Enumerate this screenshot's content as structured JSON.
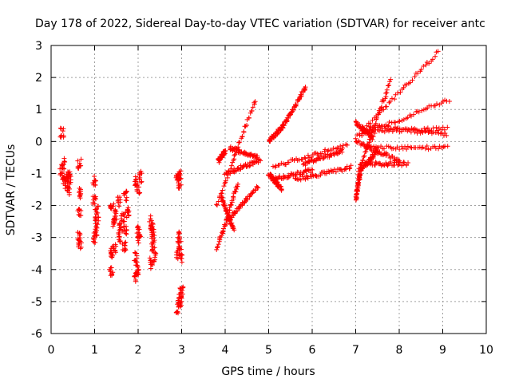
{
  "chart_data": {
    "type": "scatter",
    "title": "Day 178 of 2022, Sidereal Day-to-day VTEC variation (SDTVAR) for receiver antc",
    "xlabel": "GPS time / hours",
    "ylabel": "SDTVAR / TECUs",
    "xlim": [
      0,
      10
    ],
    "ylim": [
      -6,
      3
    ],
    "x_ticks": [
      "0",
      "1",
      "2",
      "3",
      "4",
      "5",
      "6",
      "7",
      "8",
      "9",
      "10"
    ],
    "y_ticks": [
      "-6",
      "-5",
      "-4",
      "-3",
      "-2",
      "-1",
      "0",
      "1",
      "2",
      "3"
    ],
    "grid": true,
    "marker": "+",
    "marker_color": "#ff0000",
    "clusters": [
      {
        "x": 0.25,
        "y": 0.3
      },
      {
        "x": 0.22,
        "y": -0.9
      },
      {
        "x": 0.3,
        "y": -1.2
      },
      {
        "x": 0.38,
        "y": -1.0
      },
      {
        "x": 0.4,
        "y": -1.5
      },
      {
        "x": 0.28,
        "y": -0.7
      },
      {
        "x": 0.35,
        "y": -1.3
      },
      {
        "x": 0.42,
        "y": -1.1
      },
      {
        "x": 0.65,
        "y": -0.7
      },
      {
        "x": 0.65,
        "y": -1.6
      },
      {
        "x": 0.65,
        "y": -2.2
      },
      {
        "x": 0.65,
        "y": -3.0
      },
      {
        "x": 0.66,
        "y": -3.2
      },
      {
        "x": 1.0,
        "y": -1.2
      },
      {
        "x": 1.0,
        "y": -1.8
      },
      {
        "x": 1.05,
        "y": -2.2
      },
      {
        "x": 1.02,
        "y": -2.8
      },
      {
        "x": 1.0,
        "y": -3.0
      },
      {
        "x": 1.05,
        "y": -2.5
      },
      {
        "x": 1.4,
        "y": -3.5
      },
      {
        "x": 1.45,
        "y": -3.3
      },
      {
        "x": 1.42,
        "y": -2.5
      },
      {
        "x": 1.4,
        "y": -2.0
      },
      {
        "x": 1.5,
        "y": -2.3
      },
      {
        "x": 1.55,
        "y": -1.9
      },
      {
        "x": 1.6,
        "y": -2.7
      },
      {
        "x": 1.65,
        "y": -2.4
      },
      {
        "x": 1.7,
        "y": -2.8
      },
      {
        "x": 1.68,
        "y": -3.3
      },
      {
        "x": 1.7,
        "y": -1.7
      },
      {
        "x": 1.38,
        "y": -4.1
      },
      {
        "x": 1.75,
        "y": -2.2
      },
      {
        "x": 1.58,
        "y": -3.0
      },
      {
        "x": 1.95,
        "y": -1.2
      },
      {
        "x": 2.0,
        "y": -1.5
      },
      {
        "x": 1.95,
        "y": -3.6
      },
      {
        "x": 1.98,
        "y": -4.0
      },
      {
        "x": 1.95,
        "y": -4.2
      },
      {
        "x": 2.0,
        "y": -2.8
      },
      {
        "x": 2.02,
        "y": -3.0
      },
      {
        "x": 2.05,
        "y": -1.1
      },
      {
        "x": 2.3,
        "y": -2.5
      },
      {
        "x": 2.32,
        "y": -2.7
      },
      {
        "x": 2.35,
        "y": -3.3
      },
      {
        "x": 2.38,
        "y": -3.6
      },
      {
        "x": 2.3,
        "y": -3.8
      },
      {
        "x": 2.35,
        "y": -3.0
      },
      {
        "x": 2.9,
        "y": -1.1
      },
      {
        "x": 2.95,
        "y": -1.3
      },
      {
        "x": 2.95,
        "y": -1.0
      },
      {
        "x": 2.92,
        "y": -3.0
      },
      {
        "x": 2.95,
        "y": -3.3
      },
      {
        "x": 2.98,
        "y": -3.7
      },
      {
        "x": 2.92,
        "y": -3.5
      },
      {
        "x": 2.9,
        "y": -5.2
      },
      {
        "x": 2.95,
        "y": -4.9
      },
      {
        "x": 3.0,
        "y": -4.7
      },
      {
        "x": 2.98,
        "y": -5.0
      }
    ],
    "tracks": [
      {
        "from": [
          3.8,
          -3.4
        ],
        "to": [
          4.3,
          -1.3
        ]
      },
      {
        "from": [
          3.8,
          -2.0
        ],
        "to": [
          4.7,
          1.3
        ]
      },
      {
        "from": [
          3.85,
          -0.6
        ],
        "to": [
          4.0,
          -0.3
        ]
      },
      {
        "from": [
          4.0,
          -1.0
        ],
        "to": [
          4.8,
          -0.6
        ]
      },
      {
        "from": [
          4.05,
          -2.5
        ],
        "to": [
          4.75,
          -1.4
        ]
      },
      {
        "from": [
          4.1,
          -0.2
        ],
        "to": [
          4.75,
          -0.5
        ]
      },
      {
        "from": [
          3.9,
          -1.7
        ],
        "to": [
          4.2,
          -2.8
        ]
      },
      {
        "from": [
          5.0,
          0.0
        ],
        "to": [
          5.35,
          0.5
        ]
      },
      {
        "from": [
          5.35,
          0.5
        ],
        "to": [
          5.85,
          1.7
        ]
      },
      {
        "from": [
          5.0,
          -1.0
        ],
        "to": [
          5.3,
          -1.5
        ]
      },
      {
        "from": [
          5.05,
          -1.2
        ],
        "to": [
          6.0,
          -0.9
        ]
      },
      {
        "from": [
          5.1,
          -0.8
        ],
        "to": [
          6.8,
          -0.1
        ]
      },
      {
        "from": [
          5.6,
          -1.2
        ],
        "to": [
          6.9,
          -0.8
        ]
      },
      {
        "from": [
          5.8,
          -0.7
        ],
        "to": [
          6.7,
          -0.3
        ]
      },
      {
        "from": [
          7.0,
          -1.8
        ],
        "to": [
          7.1,
          -1.0
        ]
      },
      {
        "from": [
          7.05,
          -1.0
        ],
        "to": [
          7.8,
          1.9
        ]
      },
      {
        "from": [
          7.0,
          0.0
        ],
        "to": [
          8.0,
          -0.6
        ]
      },
      {
        "from": [
          7.1,
          -0.7
        ],
        "to": [
          8.2,
          -0.7
        ]
      },
      {
        "from": [
          7.0,
          0.1
        ],
        "to": [
          8.9,
          2.8
        ]
      },
      {
        "from": [
          7.1,
          0.2
        ],
        "to": [
          9.15,
          1.3
        ]
      },
      {
        "from": [
          7.2,
          -0.2
        ],
        "to": [
          9.1,
          -0.2
        ]
      },
      {
        "from": [
          7.15,
          0.3
        ],
        "to": [
          9.1,
          0.4
        ]
      },
      {
        "from": [
          7.3,
          0.5
        ],
        "to": [
          9.1,
          0.2
        ]
      },
      {
        "from": [
          7.0,
          0.6
        ],
        "to": [
          7.4,
          0.1
        ]
      },
      {
        "from": [
          7.1,
          -0.9
        ],
        "to": [
          7.5,
          -0.3
        ]
      }
    ]
  }
}
